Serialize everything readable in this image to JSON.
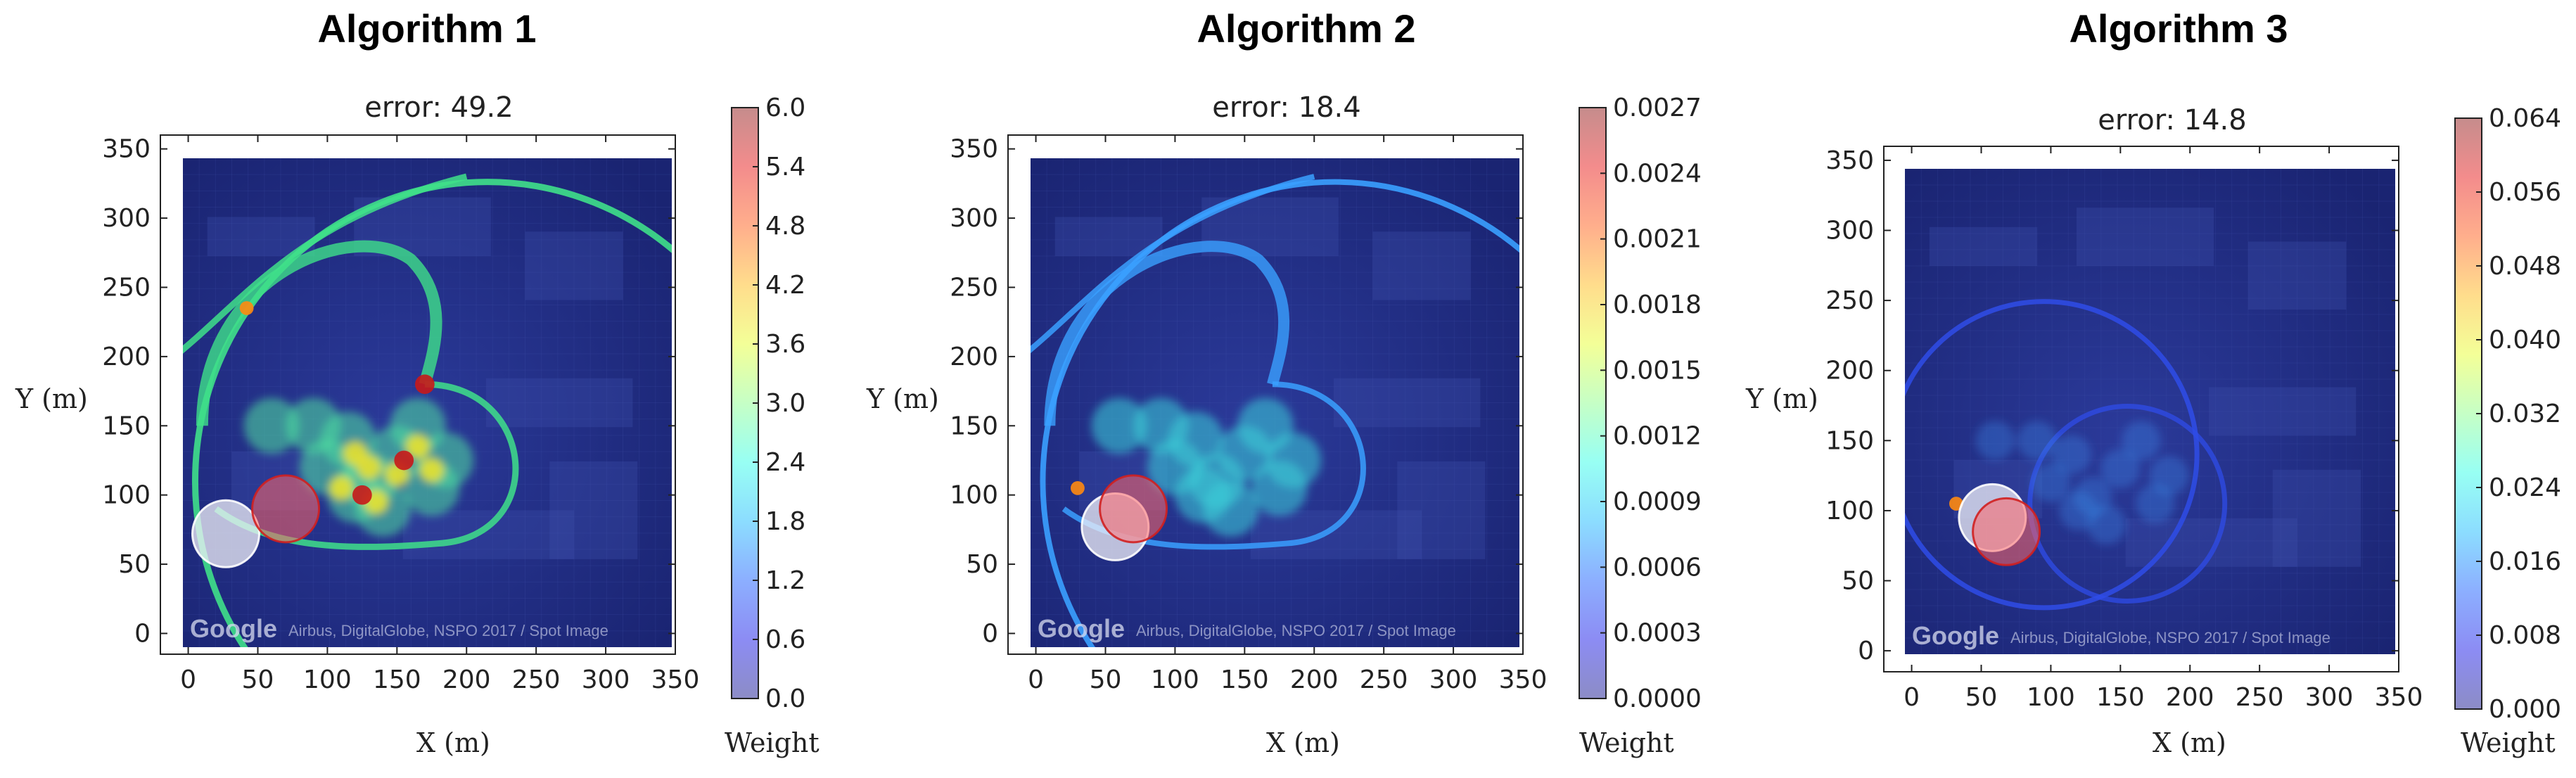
{
  "chart_data": [
    {
      "type": "heatmap",
      "title": "Algorithm 1",
      "subtitle": "error: 49.2",
      "xlabel": "X (m)",
      "ylabel": "Y (m)",
      "xlim": [
        -20,
        350
      ],
      "ylim": [
        -15,
        360
      ],
      "xticks": [
        "0",
        "50",
        "100",
        "150",
        "200",
        "250",
        "300",
        "350"
      ],
      "yticks": [
        "0",
        "50",
        "100",
        "150",
        "200",
        "250",
        "300",
        "350"
      ],
      "colorbar": {
        "label": "Weight",
        "min": 0.0,
        "max": 6.0,
        "ticks": [
          "0.0",
          "0.6",
          "1.2",
          "1.8",
          "2.4",
          "3.0",
          "3.6",
          "4.2",
          "4.8",
          "5.4",
          "6.0"
        ]
      },
      "map_attribution": {
        "brand": "Google",
        "text": "Airbus, DigitalGlobe, NSPO 2017 / Spot Image"
      },
      "markers": [
        {
          "kind": "estimate",
          "x": 27,
          "y": 72,
          "color": "#f0f0f8"
        },
        {
          "kind": "true",
          "x": 70,
          "y": 90,
          "color": "#ff6666"
        }
      ],
      "hotspots": [
        {
          "x": 170,
          "y": 180,
          "level": "max"
        },
        {
          "x": 42,
          "y": 235,
          "level": "high"
        },
        {
          "x": 125,
          "y": 100,
          "level": "max"
        },
        {
          "x": 155,
          "y": 125,
          "level": "max"
        }
      ]
    },
    {
      "type": "heatmap",
      "title": "Algorithm 2",
      "subtitle": "error: 18.4",
      "xlabel": "X (m)",
      "ylabel": "Y (m)",
      "xlim": [
        -20,
        350
      ],
      "ylim": [
        -15,
        360
      ],
      "xticks": [
        "0",
        "50",
        "100",
        "150",
        "200",
        "250",
        "300",
        "350"
      ],
      "yticks": [
        "0",
        "50",
        "100",
        "150",
        "200",
        "250",
        "300",
        "350"
      ],
      "colorbar": {
        "label": "Weight",
        "min": 0.0,
        "max": 0.0027,
        "ticks": [
          "0.0000",
          "0.0003",
          "0.0006",
          "0.0009",
          "0.0012",
          "0.0015",
          "0.0018",
          "0.0021",
          "0.0024",
          "0.0027"
        ]
      },
      "map_attribution": {
        "brand": "Google",
        "text": "Airbus, DigitalGlobe, NSPO 2017 / Spot Image"
      },
      "markers": [
        {
          "kind": "estimate",
          "x": 57,
          "y": 77,
          "color": "#f0f0f8"
        },
        {
          "kind": "true",
          "x": 70,
          "y": 90,
          "color": "#ff6666"
        }
      ],
      "hotspots": [
        {
          "x": 30,
          "y": 105,
          "level": "high"
        }
      ]
    },
    {
      "type": "heatmap",
      "title": "Algorithm 3",
      "subtitle": "error: 14.8",
      "xlabel": "X (m)",
      "ylabel": "Y (m)",
      "xlim": [
        -20,
        350
      ],
      "ylim": [
        -15,
        360
      ],
      "xticks": [
        "0",
        "50",
        "100",
        "150",
        "200",
        "250",
        "300",
        "350"
      ],
      "yticks": [
        "0",
        "50",
        "100",
        "150",
        "200",
        "250",
        "300",
        "350"
      ],
      "colorbar": {
        "label": "Weight",
        "min": 0.0,
        "max": 0.064,
        "ticks": [
          "0.000",
          "0.008",
          "0.016",
          "0.024",
          "0.032",
          "0.040",
          "0.048",
          "0.056",
          "0.064"
        ]
      },
      "map_attribution": {
        "brand": "Google",
        "text": "Airbus, DigitalGlobe, NSPO 2017 / Spot Image"
      },
      "markers": [
        {
          "kind": "estimate",
          "x": 58,
          "y": 95,
          "color": "#f0f0f8"
        },
        {
          "kind": "true",
          "x": 68,
          "y": 85,
          "color": "#ff6666"
        }
      ],
      "hotspots": [
        {
          "x": 32,
          "y": 105,
          "level": "high"
        }
      ]
    }
  ]
}
